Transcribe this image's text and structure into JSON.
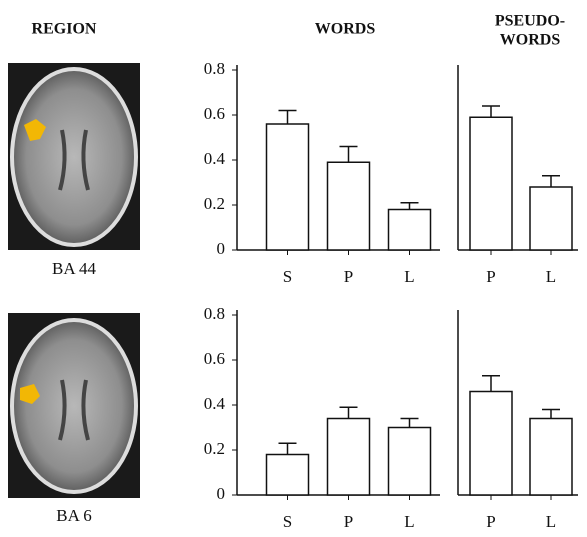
{
  "headers": {
    "region": "REGION",
    "words": "WORDS",
    "pseudowords": [
      "PSEUDO-",
      "WORDS"
    ]
  },
  "regions": [
    "BA 44",
    "BA 6"
  ],
  "chart_data": [
    {
      "type": "bar",
      "categories": [
        "S",
        "P",
        "L"
      ],
      "values": [
        0.56,
        0.39,
        0.18
      ],
      "errors": [
        0.06,
        0.07,
        0.03
      ],
      "color": "#ffffff",
      "ylim": [
        0,
        0.8
      ],
      "yticks": [
        0,
        0.2,
        0.4,
        0.6,
        0.8
      ]
    },
    {
      "type": "bar",
      "categories": [
        "P",
        "L"
      ],
      "values": [
        0.59,
        0.28
      ],
      "errors": [
        0.05,
        0.05
      ],
      "color": "#ffffff",
      "ylim": [
        0,
        0.8
      ]
    },
    {
      "type": "bar",
      "categories": [
        "S",
        "P",
        "L"
      ],
      "values": [
        0.18,
        0.34,
        0.3
      ],
      "errors": [
        0.05,
        0.05,
        0.04
      ],
      "color": "#ffffff",
      "ylim": [
        0,
        0.8
      ],
      "yticks": [
        0,
        0.2,
        0.4,
        0.6,
        0.8
      ]
    },
    {
      "type": "bar",
      "categories": [
        "P",
        "L"
      ],
      "values": [
        0.46,
        0.34
      ],
      "errors": [
        0.07,
        0.04
      ],
      "color": "#ffffff",
      "ylim": [
        0,
        0.8
      ]
    }
  ]
}
